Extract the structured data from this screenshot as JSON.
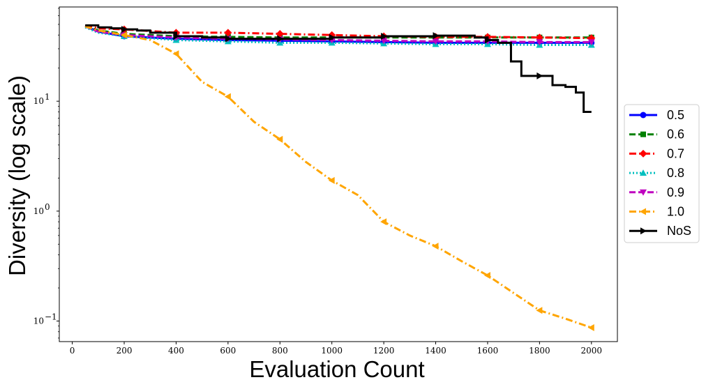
{
  "chart_data": {
    "type": "line",
    "title": "",
    "xlabel": "Evaluation Count",
    "ylabel": "Diversity (log scale)",
    "xlim": [
      -50,
      2100
    ],
    "ylim": [
      0.065,
      72
    ],
    "yscale": "log",
    "grid": false,
    "legend_position": "right",
    "x_ticks": [
      0,
      200,
      400,
      600,
      800,
      1000,
      1200,
      1400,
      1600,
      1800,
      2000
    ],
    "x_tick_labels": [
      "0",
      "200",
      "400",
      "600",
      "800",
      "1000",
      "1200",
      "1400",
      "1600",
      "1800",
      "2000"
    ],
    "y_ticks": [
      {
        "value": 0.1,
        "base": "10",
        "exp": "−1"
      },
      {
        "value": 1,
        "base": "10",
        "exp": "0"
      },
      {
        "value": 10,
        "base": "10",
        "exp": "1"
      }
    ],
    "series": [
      {
        "name": "0.5",
        "color": "#0000ff",
        "dash": "solid",
        "marker": "circle",
        "x": [
          50,
          100,
          200,
          400,
          600,
          800,
          1000,
          1200,
          1400,
          1600,
          1800,
          2000
        ],
        "y": [
          48,
          43,
          39,
          37,
          36,
          35.5,
          35,
          34.5,
          34,
          34,
          34,
          34
        ]
      },
      {
        "name": "0.6",
        "color": "#008000",
        "dash": "dashed",
        "marker": "square",
        "x": [
          50,
          100,
          200,
          400,
          600,
          800,
          1000,
          1200,
          1400,
          1600,
          1800,
          2000
        ],
        "y": [
          49,
          44,
          41,
          39,
          38.5,
          38,
          38,
          38,
          38,
          38,
          38,
          38
        ]
      },
      {
        "name": "0.7",
        "color": "#ff0000",
        "dash": "dashdot",
        "marker": "diamond",
        "x": [
          50,
          100,
          200,
          400,
          600,
          800,
          1000,
          1200,
          1400,
          1600,
          1800,
          2000
        ],
        "y": [
          49,
          46,
          45,
          42,
          42,
          41,
          40,
          39,
          38.5,
          38.5,
          38,
          37.5
        ]
      },
      {
        "name": "0.8",
        "color": "#00bfbf",
        "dash": "dotted",
        "marker": "triangle-up",
        "x": [
          50,
          100,
          200,
          400,
          600,
          800,
          1000,
          1200,
          1400,
          1600,
          1800,
          2000
        ],
        "y": [
          47,
          42,
          39,
          36,
          35,
          34,
          34,
          33.5,
          33,
          33,
          32.5,
          32.5
        ]
      },
      {
        "name": "0.9",
        "color": "#bf00bf",
        "dash": "dashed",
        "marker": "triangle-down",
        "x": [
          50,
          100,
          200,
          400,
          600,
          800,
          1000,
          1200,
          1400,
          1600,
          1800,
          2000
        ],
        "y": [
          48,
          43,
          40,
          38,
          37,
          36.5,
          36,
          35.5,
          35,
          35,
          34.5,
          34.5
        ]
      },
      {
        "name": "1.0",
        "color": "#ffa500",
        "dash": "dashdot",
        "marker": "triangle-left",
        "x": [
          50,
          100,
          200,
          300,
          400,
          500,
          600,
          700,
          800,
          900,
          1000,
          1100,
          1200,
          1300,
          1400,
          1500,
          1600,
          1700,
          1800,
          1900,
          2000
        ],
        "y": [
          48,
          44,
          40,
          36,
          27,
          15,
          11,
          6.5,
          4.5,
          2.8,
          1.9,
          1.4,
          0.8,
          0.6,
          0.48,
          0.35,
          0.26,
          0.18,
          0.125,
          0.105,
          0.087
        ]
      },
      {
        "name": "NoS",
        "color": "#000000",
        "dash": "solid",
        "marker": "triangle-right",
        "step": true,
        "x": [
          50,
          100,
          150,
          200,
          250,
          300,
          400,
          500,
          600,
          800,
          1000,
          1200,
          1400,
          1550,
          1600,
          1640,
          1690,
          1730,
          1800,
          1850,
          1900,
          1940,
          1970,
          2000
        ],
        "y": [
          49,
          47,
          46,
          45,
          44,
          42,
          39,
          38,
          37,
          37,
          38,
          39,
          39.5,
          38,
          36,
          34,
          23,
          17,
          17,
          14,
          13.5,
          12,
          8,
          8
        ],
        "marker_x": [
          200,
          400,
          600,
          800,
          1000,
          1200,
          1400,
          1600,
          1800
        ]
      }
    ]
  }
}
